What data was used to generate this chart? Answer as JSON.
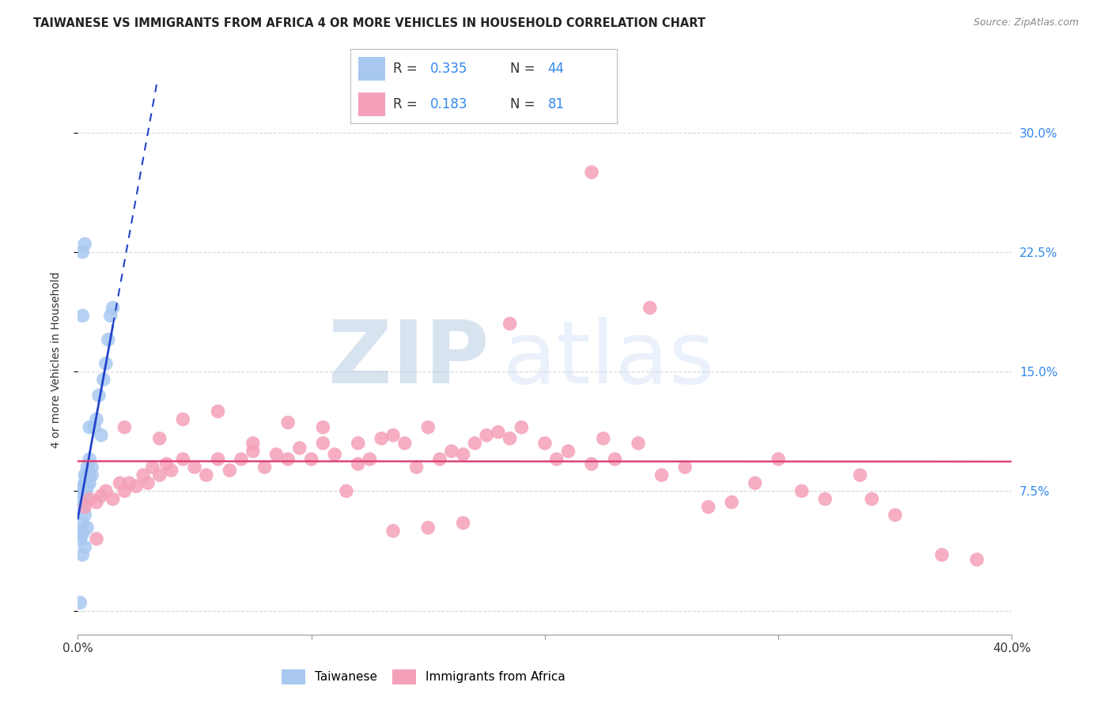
{
  "title": "TAIWANESE VS IMMIGRANTS FROM AFRICA 4 OR MORE VEHICLES IN HOUSEHOLD CORRELATION CHART",
  "source": "Source: ZipAtlas.com",
  "ylabel": "4 or more Vehicles in Household",
  "xlim": [
    0.0,
    40.0
  ],
  "ylim": [
    -1.5,
    33.0
  ],
  "blue_color": "#a8c8f0",
  "pink_color": "#f4a0b8",
  "blue_line_color": "#2244cc",
  "pink_line_color": "#dd4477",
  "grid_color": "#cccccc",
  "watermark_color": "#ccd8f0",
  "legend_r1": "0.335",
  "legend_n1": "44",
  "legend_r2": "0.183",
  "legend_n2": "81",
  "taiwanese_x": [
    0.1,
    0.1,
    0.15,
    0.2,
    0.2,
    0.2,
    0.2,
    0.2,
    0.2,
    0.2,
    0.25,
    0.25,
    0.3,
    0.3,
    0.3,
    0.3,
    0.3,
    0.35,
    0.35,
    0.4,
    0.4,
    0.4,
    0.5,
    0.5,
    0.5,
    0.6,
    0.6,
    0.7,
    0.8,
    0.9,
    1.0,
    1.1,
    1.2,
    1.3,
    1.4,
    1.5,
    0.2,
    0.3,
    0.4,
    0.5,
    0.2,
    0.3,
    0.2,
    0.1
  ],
  "taiwanese_y": [
    0.5,
    4.5,
    5.0,
    4.8,
    5.5,
    6.5,
    6.8,
    7.0,
    7.2,
    7.5,
    7.5,
    7.8,
    6.0,
    7.0,
    7.5,
    8.0,
    8.5,
    7.5,
    8.2,
    7.8,
    8.5,
    9.0,
    8.0,
    8.5,
    9.5,
    8.5,
    9.0,
    11.5,
    12.0,
    13.5,
    11.0,
    14.5,
    15.5,
    17.0,
    18.5,
    19.0,
    3.5,
    4.0,
    5.2,
    11.5,
    22.5,
    23.0,
    18.5,
    6.5
  ],
  "africa_x": [
    0.3,
    0.5,
    0.8,
    1.0,
    1.2,
    1.5,
    1.8,
    2.0,
    2.2,
    2.5,
    2.8,
    3.0,
    3.2,
    3.5,
    3.8,
    4.0,
    4.5,
    5.0,
    5.5,
    6.0,
    6.5,
    7.0,
    7.5,
    8.0,
    8.5,
    9.0,
    9.5,
    10.0,
    10.5,
    11.0,
    11.5,
    12.0,
    12.5,
    13.0,
    13.5,
    14.0,
    14.5,
    15.0,
    15.5,
    16.0,
    16.5,
    17.0,
    17.5,
    18.0,
    18.5,
    19.0,
    20.0,
    20.5,
    21.0,
    22.0,
    22.5,
    23.0,
    24.0,
    25.0,
    26.0,
    27.0,
    28.0,
    29.0,
    30.0,
    31.0,
    32.0,
    33.5,
    34.0,
    35.0,
    37.0,
    38.5,
    2.0,
    3.5,
    4.5,
    6.0,
    7.5,
    9.0,
    10.5,
    12.0,
    13.5,
    15.0,
    16.5,
    18.5,
    22.0,
    24.5,
    0.8
  ],
  "africa_y": [
    6.5,
    7.0,
    6.8,
    7.2,
    7.5,
    7.0,
    8.0,
    7.5,
    8.0,
    7.8,
    8.5,
    8.0,
    9.0,
    8.5,
    9.2,
    8.8,
    9.5,
    9.0,
    8.5,
    9.5,
    8.8,
    9.5,
    10.0,
    9.0,
    9.8,
    9.5,
    10.2,
    9.5,
    10.5,
    9.8,
    7.5,
    9.2,
    9.5,
    10.8,
    11.0,
    10.5,
    9.0,
    11.5,
    9.5,
    10.0,
    9.8,
    10.5,
    11.0,
    11.2,
    10.8,
    11.5,
    10.5,
    9.5,
    10.0,
    9.2,
    10.8,
    9.5,
    10.5,
    8.5,
    9.0,
    6.5,
    6.8,
    8.0,
    9.5,
    7.5,
    7.0,
    8.5,
    7.0,
    6.0,
    3.5,
    3.2,
    11.5,
    10.8,
    12.0,
    12.5,
    10.5,
    11.8,
    11.5,
    10.5,
    5.0,
    5.2,
    5.5,
    18.0,
    27.5,
    19.0,
    4.5
  ]
}
